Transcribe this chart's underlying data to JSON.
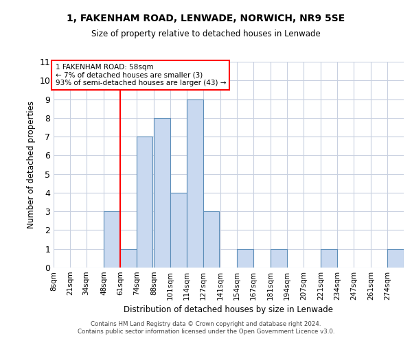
{
  "title1": "1, FAKENHAM ROAD, LENWADE, NORWICH, NR9 5SE",
  "title2": "Size of property relative to detached houses in Lenwade",
  "xlabel": "Distribution of detached houses by size in Lenwade",
  "ylabel": "Number of detached properties",
  "footer1": "Contains HM Land Registry data © Crown copyright and database right 2024.",
  "footer2": "Contains public sector information licensed under the Open Government Licence v3.0.",
  "annotation_line1": "1 FAKENHAM ROAD: 58sqm",
  "annotation_line2": "← 7% of detached houses are smaller (3)",
  "annotation_line3": "93% of semi-detached houses are larger (43) →",
  "bar_color": "#c9d9f0",
  "bar_edge_color": "#5b8db8",
  "red_line_x": 61,
  "categories": [
    "8sqm",
    "21sqm",
    "34sqm",
    "48sqm",
    "61sqm",
    "74sqm",
    "88sqm",
    "101sqm",
    "114sqm",
    "127sqm",
    "141sqm",
    "154sqm",
    "167sqm",
    "181sqm",
    "194sqm",
    "207sqm",
    "221sqm",
    "234sqm",
    "247sqm",
    "261sqm",
    "274sqm"
  ],
  "values": [
    0,
    0,
    0,
    3,
    1,
    7,
    8,
    4,
    9,
    3,
    0,
    1,
    0,
    1,
    0,
    0,
    1,
    0,
    0,
    0,
    1
  ],
  "bin_width": 13,
  "bin_starts": [
    8,
    21,
    34,
    48,
    61,
    74,
    88,
    101,
    114,
    127,
    141,
    154,
    167,
    181,
    194,
    207,
    221,
    234,
    247,
    261,
    274
  ],
  "ylim": [
    0,
    11
  ],
  "yticks": [
    0,
    1,
    2,
    3,
    4,
    5,
    6,
    7,
    8,
    9,
    10,
    11
  ],
  "background_color": "#ffffff",
  "grid_color": "#c8d0e0"
}
